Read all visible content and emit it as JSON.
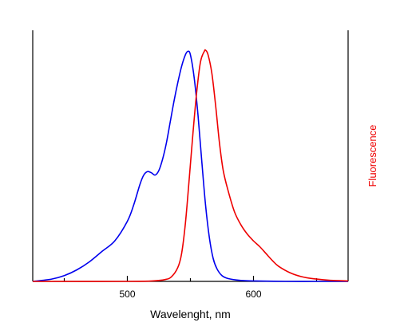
{
  "chart_data": {
    "type": "line",
    "title": "",
    "xlabel": "Wavelenght, nm",
    "ylabel": "",
    "y2label": "Fluorescence",
    "xlim": [
      425,
      675
    ],
    "ylim": [
      0,
      1.0
    ],
    "x_ticks": [
      500,
      600
    ],
    "x_minor_ticks": [
      450,
      550,
      650
    ],
    "grid": false,
    "legend": "none",
    "colors": {
      "absorption": "#0000ee",
      "fluorescence": "#ee0000",
      "y2label": "#ee0000",
      "axis": "#000000"
    },
    "series": [
      {
        "color": "#0000ee",
        "x": [
          425,
          440,
          450,
          460,
          470,
          480,
          490,
          500,
          505,
          510,
          513,
          516,
          519,
          522,
          525,
          528,
          531,
          534,
          537,
          540,
          543,
          546,
          548,
          550,
          553,
          556,
          559,
          562,
          565,
          568,
          571,
          575,
          580,
          590,
          600,
          625,
          650,
          675
        ],
        "y": [
          0.0,
          0.01,
          0.025,
          0.05,
          0.085,
          0.13,
          0.175,
          0.26,
          0.33,
          0.42,
          0.46,
          0.475,
          0.47,
          0.46,
          0.48,
          0.53,
          0.6,
          0.69,
          0.78,
          0.86,
          0.93,
          0.98,
          0.995,
          0.98,
          0.88,
          0.72,
          0.52,
          0.33,
          0.19,
          0.1,
          0.055,
          0.025,
          0.012,
          0.004,
          0.002,
          0.0,
          0.0,
          0.0
        ]
      },
      {
        "color": "#ee0000",
        "x": [
          425,
          500,
          520,
          530,
          535,
          540,
          543,
          546,
          549,
          552,
          555,
          558,
          561,
          562,
          564,
          567,
          570,
          573,
          576,
          580,
          585,
          590,
          595,
          600,
          605,
          610,
          615,
          620,
          630,
          640,
          650,
          660,
          675
        ],
        "y": [
          0.0,
          0.0,
          0.002,
          0.008,
          0.02,
          0.06,
          0.12,
          0.25,
          0.44,
          0.64,
          0.82,
          0.95,
          0.995,
          1.0,
          0.98,
          0.9,
          0.76,
          0.6,
          0.48,
          0.39,
          0.3,
          0.245,
          0.205,
          0.175,
          0.15,
          0.12,
          0.09,
          0.065,
          0.035,
          0.018,
          0.01,
          0.005,
          0.002
        ]
      }
    ]
  }
}
